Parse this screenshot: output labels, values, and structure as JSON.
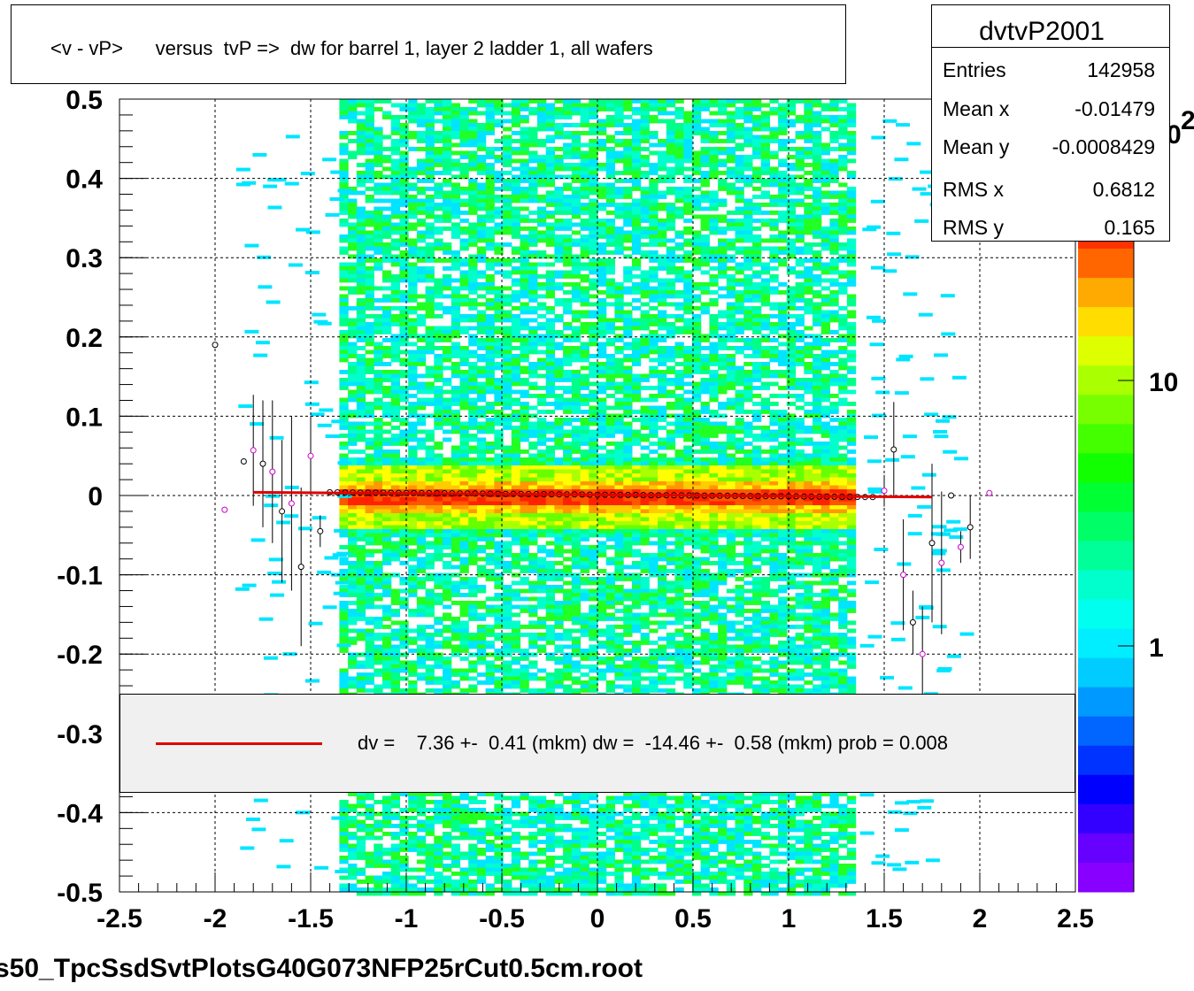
{
  "title": "<v - vP>      versus  tvP =>  dw for barrel 1, layer 2 ladder 1, all wafers",
  "stats": {
    "name": "dvtvP2001",
    "rows": [
      {
        "label": "Entries",
        "value": "142958"
      },
      {
        "label": "Mean x",
        "value": "-0.01479"
      },
      {
        "label": "Mean y",
        "value": "-0.0008429"
      },
      {
        "label": "RMS x",
        "value": "0.6812"
      },
      {
        "label": "RMS y",
        "value": "0.165"
      }
    ]
  },
  "legend": {
    "text": "dv =    7.36 +-  0.41 (mkm) dw =  -14.46 +-  0.58 (mkm) prob = 0.008",
    "line_color": "#e00000"
  },
  "footer": "s50_TpcSsdSvtPlotsG40G073NFP25rCut0.5cm.root",
  "palette_labels": [
    "10",
    "1"
  ],
  "palette_exponent": "2",
  "chart_data": {
    "type": "heatmap",
    "title": "<v - vP>      versus  tvP =>  dw for barrel 1, layer 2 ladder 1, all wafers",
    "xlabel": "",
    "ylabel": "",
    "xlim": [
      -2.5,
      2.5
    ],
    "ylim": [
      -0.5,
      0.5
    ],
    "x_ticks": [
      "-2.5",
      "-2",
      "-1.5",
      "-1",
      "-0.5",
      "0",
      "0.5",
      "1",
      "1.5",
      "2",
      "2.5"
    ],
    "y_ticks": [
      "0.5",
      "0.4",
      "0.3",
      "0.2",
      "0.1",
      "0",
      "-0.1",
      "-0.2",
      "-0.3",
      "-0.4",
      "-0.5"
    ],
    "grid": true,
    "z_scale": "log",
    "band_x_range": [
      -1.35,
      1.35
    ],
    "fit_line": {
      "x": [
        -1.8,
        1.75
      ],
      "y": [
        0.004,
        -0.002
      ],
      "color": "#e00000"
    },
    "profile_points": [
      {
        "x": -2.0,
        "y": 0.19,
        "err": 0.0
      },
      {
        "x": -1.95,
        "y": -0.018,
        "err": 0.0
      },
      {
        "x": -1.85,
        "y": 0.043,
        "err": 0.0
      },
      {
        "x": -1.8,
        "y": 0.057,
        "err": 0.07
      },
      {
        "x": -1.75,
        "y": 0.04,
        "err": 0.08
      },
      {
        "x": -1.7,
        "y": 0.03,
        "err": 0.09
      },
      {
        "x": -1.65,
        "y": -0.02,
        "err": 0.09
      },
      {
        "x": -1.6,
        "y": -0.01,
        "err": 0.11
      },
      {
        "x": -1.55,
        "y": -0.09,
        "err": 0.1
      },
      {
        "x": -1.5,
        "y": 0.05,
        "err": 0.05
      },
      {
        "x": -1.45,
        "y": -0.045,
        "err": 0.02
      },
      {
        "x": 1.5,
        "y": 0.006,
        "err": 0.02
      },
      {
        "x": 1.55,
        "y": 0.058,
        "err": 0.06
      },
      {
        "x": 1.6,
        "y": -0.1,
        "err": 0.07
      },
      {
        "x": 1.65,
        "y": -0.16,
        "err": 0.04
      },
      {
        "x": 1.7,
        "y": -0.2,
        "err": 0.06
      },
      {
        "x": 1.75,
        "y": -0.06,
        "err": 0.1
      },
      {
        "x": 1.8,
        "y": -0.085,
        "err": 0.09
      },
      {
        "x": 1.85,
        "y": -0.0,
        "err": 0.0
      },
      {
        "x": 1.9,
        "y": -0.065,
        "err": 0.02
      },
      {
        "x": 1.95,
        "y": -0.04,
        "err": 0.04
      },
      {
        "x": 2.05,
        "y": 0.003,
        "err": 0.0
      }
    ]
  },
  "colors": {
    "frame": "#000000",
    "grid": "#000000",
    "fit": "#e00000"
  }
}
